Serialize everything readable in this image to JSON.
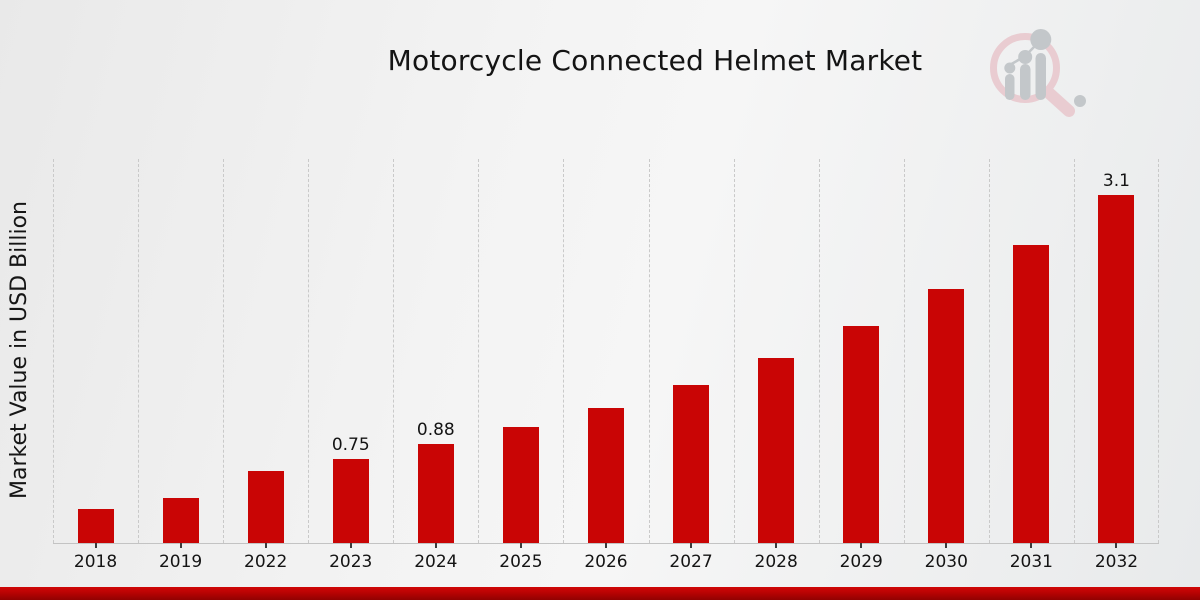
{
  "page": {
    "footer_bar_color": "#b80303"
  },
  "branding": {
    "logo_icon": "magnifier-growth-chart-watermark-icon",
    "ring_color": "#e9ccd1",
    "glyph_color": "#c3c7ca"
  },
  "chart_data": {
    "type": "bar",
    "title": "Motorcycle Connected Helmet Market",
    "ylabel": "Market Value in USD Billion",
    "xlabel": "",
    "categories": [
      "2018",
      "2019",
      "2022",
      "2023",
      "2024",
      "2025",
      "2026",
      "2027",
      "2028",
      "2029",
      "2030",
      "2031",
      "2032"
    ],
    "values": [
      0.3,
      0.4,
      0.64,
      0.75,
      0.88,
      1.03,
      1.2,
      1.41,
      1.65,
      1.93,
      2.26,
      2.65,
      3.1
    ],
    "data_labels": {
      "2023": "0.75",
      "2024": "0.88",
      "2032": "3.1"
    },
    "bar_color": "#c90505",
    "ylim": [
      0,
      3.42
    ],
    "grid": "vertical-dashed",
    "legend": "none",
    "y_tick_labels_shown": false
  }
}
